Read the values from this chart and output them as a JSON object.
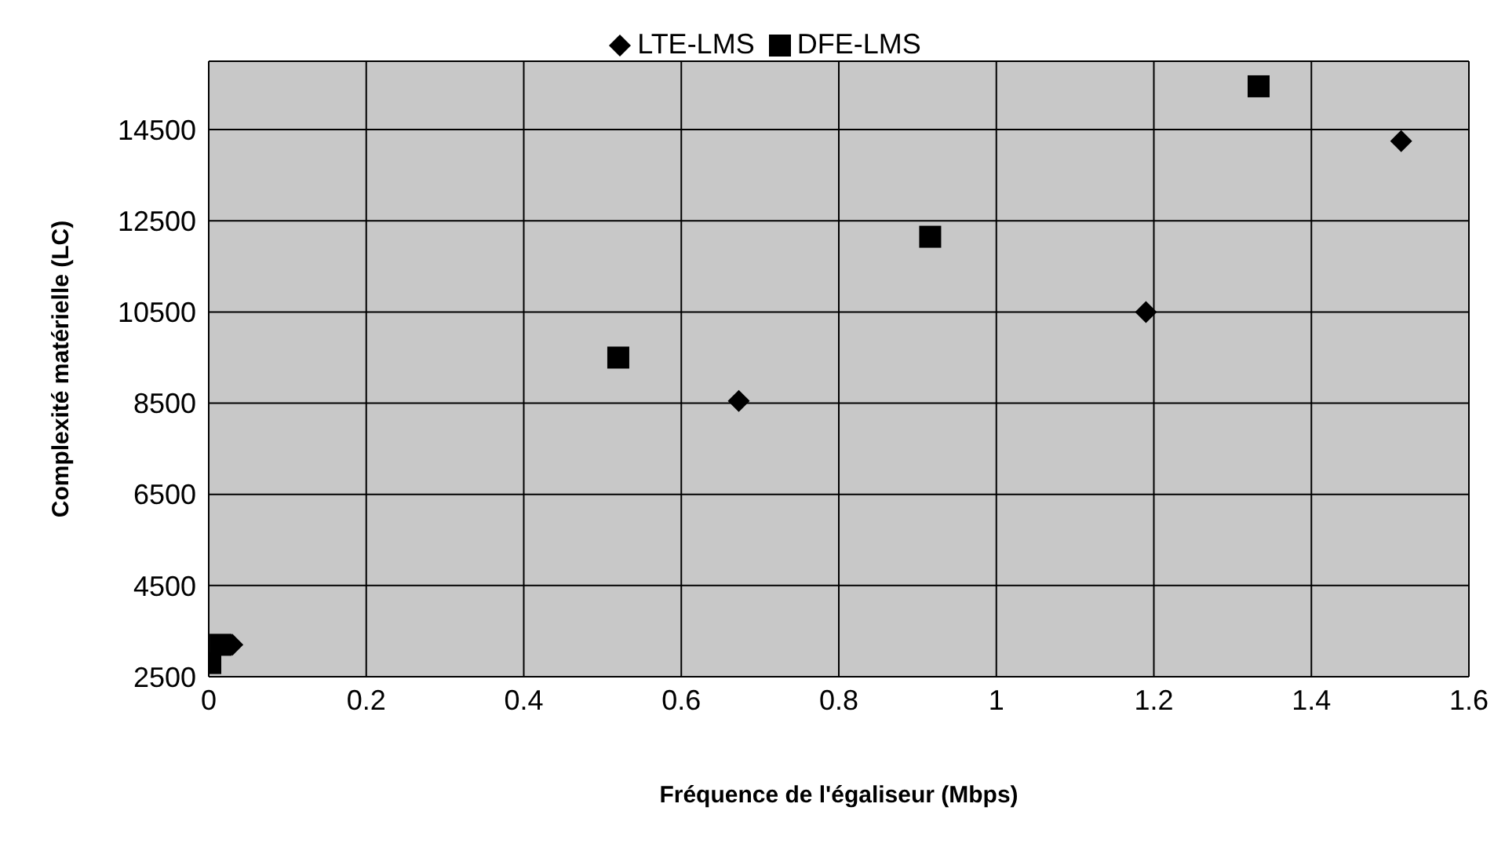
{
  "chart_data": {
    "type": "scatter",
    "xlabel": "Fréquence de l'égaliseur (Mbps)",
    "ylabel": "Complexité matérielle (LC)",
    "xlim": [
      0,
      1.6
    ],
    "xticks": [
      0,
      0.2,
      0.4,
      0.6,
      0.8,
      1,
      1.2,
      1.4,
      1.6
    ],
    "ylim": [
      2500,
      16000
    ],
    "yticks": [
      2500,
      4500,
      6500,
      8500,
      10500,
      12500,
      14500
    ],
    "grid": true,
    "legend": "top",
    "series": [
      {
        "name": "LTE-LMS",
        "color": "#000000",
        "marker": "diamond",
        "x": [
          0.03,
          0.673,
          1.19,
          1.514
        ],
        "values": [
          3200,
          8550,
          10500,
          14250
        ]
      },
      {
        "name": "DFE-LMS",
        "color": "#000000",
        "marker": "square",
        "x": [
          0.002,
          0.015,
          0.52,
          0.916,
          1.333
        ],
        "values": [
          2800,
          3200,
          9500,
          12150,
          15450
        ]
      }
    ]
  }
}
